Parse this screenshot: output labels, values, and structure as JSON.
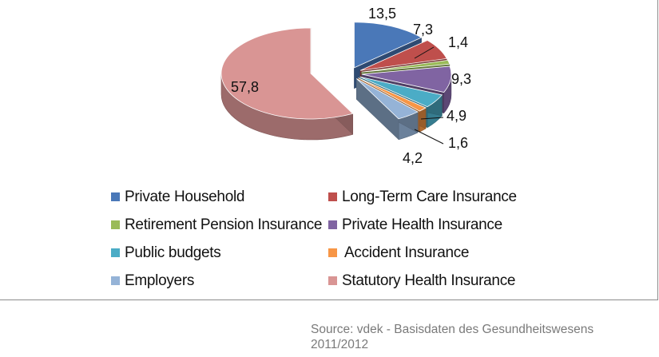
{
  "chart_data": {
    "type": "pie",
    "title": "",
    "legend_position": "bottom",
    "slices": [
      {
        "label": "Private Household",
        "value": "13,5",
        "color": "#4a78b8"
      },
      {
        "label": "Long-Term Care Insurance",
        "value": "7,3",
        "color": "#bf4f4c"
      },
      {
        "label": "Retirement Pension Insurance",
        "value": "1,4",
        "color": "#9abb59"
      },
      {
        "label": "Private Health Insurance",
        "value": "9,3",
        "color": "#8064a2"
      },
      {
        "label": "Public budgets",
        "value": "4,9",
        "color": "#4bacc6"
      },
      {
        "label": "Accident Insurance",
        "value": "1,6",
        "color": "#f79646"
      },
      {
        "label": "Employers",
        "value": "4,2",
        "color": "#95b3d7"
      },
      {
        "label": "Statutory Health Insurance",
        "value": "57,8",
        "color": "#d99594"
      }
    ]
  },
  "source": "Source: vdek - Basisdaten des Gesundheitswesens 2011/2012"
}
